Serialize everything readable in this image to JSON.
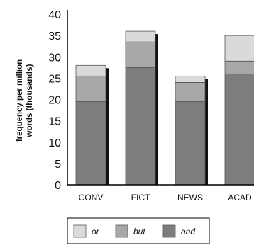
{
  "chart_data": {
    "type": "bar",
    "stacked": true,
    "categories": [
      "CONV",
      "FICT",
      "NEWS",
      "ACAD"
    ],
    "series": [
      {
        "name": "and",
        "values": [
          19.5,
          27.5,
          19.5,
          26
        ],
        "color": "#7d7d7d"
      },
      {
        "name": "but",
        "values": [
          6,
          6,
          4.5,
          3
        ],
        "color": "#a8a8a8"
      },
      {
        "name": "or",
        "values": [
          2.5,
          2.5,
          1.5,
          6
        ],
        "color": "#dadada"
      }
    ],
    "ylabel_lines": [
      "frequency per million",
      "words (thousands)"
    ],
    "ylim": [
      0,
      40
    ],
    "yticks": [
      0,
      5,
      10,
      15,
      20,
      25,
      30,
      35,
      40
    ],
    "legend_position": "bottom",
    "legend_order": [
      "or",
      "but",
      "and"
    ],
    "grid": false
  }
}
